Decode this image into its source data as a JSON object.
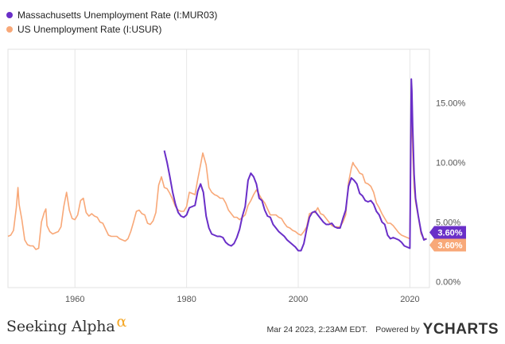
{
  "legend": {
    "items": [
      {
        "label": "Massachusetts Unemployment Rate (I:MUR03)",
        "color": "#6a2fc8"
      },
      {
        "label": "US Unemployment Rate (I:USUR)",
        "color": "#f8a878"
      }
    ]
  },
  "footer": {
    "brand": "Seeking Alpha",
    "brand_symbol": "α",
    "timestamp": "Mar 24 2023, 2:23AM EDT.",
    "powered_by": "Powered by",
    "ycharts": "YCHARTS"
  },
  "chart_data": {
    "type": "line",
    "x_ticks": [
      1960,
      1980,
      2000,
      2020
    ],
    "y_ticks": [
      0,
      5,
      10,
      15
    ],
    "y_tick_labels": [
      "0.00%",
      "5.00%",
      "10.00%",
      "15.00%"
    ],
    "xlim": [
      1948,
      2023.5
    ],
    "ylim": [
      -0.5,
      19.5
    ],
    "grid": "vertical",
    "legend_position": "top-left",
    "end_labels": [
      {
        "series": "Massachusetts Unemployment Rate (I:MUR03)",
        "text": "3.60%",
        "value": 3.6
      },
      {
        "series": "US Unemployment Rate (I:USUR)",
        "text": "3.60%",
        "value": 3.6
      }
    ],
    "series": [
      {
        "name": "Massachusetts Unemployment Rate (I:MUR03)",
        "color": "#6a2fc8",
        "x": [
          1976.0,
          1976.5,
          1977.0,
          1977.5,
          1978.0,
          1978.5,
          1979.0,
          1979.5,
          1980.0,
          1980.5,
          1981.0,
          1981.5,
          1982.0,
          1982.5,
          1983.0,
          1983.5,
          1984.0,
          1984.5,
          1985.0,
          1985.5,
          1986.0,
          1986.5,
          1987.0,
          1987.5,
          1988.0,
          1988.5,
          1989.0,
          1989.5,
          1990.0,
          1990.5,
          1991.0,
          1991.5,
          1992.0,
          1992.5,
          1993.0,
          1993.5,
          1994.0,
          1994.5,
          1995.0,
          1995.5,
          1996.0,
          1996.5,
          1997.0,
          1997.5,
          1998.0,
          1998.5,
          1999.0,
          1999.5,
          2000.0,
          2000.5,
          2001.0,
          2001.5,
          2002.0,
          2002.5,
          2003.0,
          2003.5,
          2004.0,
          2004.5,
          2005.0,
          2005.5,
          2006.0,
          2006.5,
          2007.0,
          2007.5,
          2008.0,
          2008.5,
          2009.0,
          2009.5,
          2010.0,
          2010.5,
          2011.0,
          2011.5,
          2012.0,
          2012.5,
          2013.0,
          2013.5,
          2014.0,
          2014.5,
          2015.0,
          2015.5,
          2016.0,
          2016.5,
          2017.0,
          2017.5,
          2018.0,
          2018.5,
          2019.0,
          2019.5,
          2020.0,
          2020.25,
          2020.35,
          2020.5,
          2020.75,
          2021.0,
          2021.5,
          2022.0,
          2022.5,
          2023.0
        ],
        "values": [
          11.0,
          10.0,
          8.8,
          7.5,
          6.5,
          5.8,
          5.5,
          5.4,
          5.6,
          6.2,
          6.3,
          6.4,
          7.6,
          8.2,
          7.5,
          5.5,
          4.5,
          4.0,
          3.9,
          3.8,
          3.8,
          3.7,
          3.3,
          3.1,
          3.0,
          3.2,
          3.7,
          4.4,
          5.5,
          6.3,
          8.5,
          9.1,
          8.8,
          8.2,
          7.0,
          6.8,
          6.0,
          5.5,
          5.4,
          4.8,
          4.5,
          4.2,
          4.0,
          3.8,
          3.5,
          3.3,
          3.1,
          2.9,
          2.6,
          2.6,
          3.2,
          4.4,
          5.4,
          5.8,
          5.9,
          5.6,
          5.3,
          5.0,
          4.8,
          4.8,
          4.9,
          4.6,
          4.5,
          4.5,
          5.3,
          6.0,
          8.0,
          8.7,
          8.5,
          8.2,
          7.4,
          7.2,
          6.8,
          6.7,
          6.8,
          6.5,
          5.9,
          5.6,
          5.0,
          4.8,
          3.9,
          3.6,
          3.7,
          3.6,
          3.5,
          3.3,
          3.0,
          2.9,
          2.8,
          17.0,
          16.0,
          13.0,
          9.0,
          7.0,
          5.5,
          4.2,
          3.5,
          3.6
        ]
      },
      {
        "name": "US Unemployment Rate (I:USUR)",
        "color": "#f8a878",
        "x": [
          1948.0,
          1948.5,
          1949.0,
          1949.5,
          1949.8,
          1950.0,
          1950.5,
          1951.0,
          1951.5,
          1952.0,
          1952.5,
          1953.0,
          1953.5,
          1954.0,
          1954.5,
          1954.8,
          1955.0,
          1955.5,
          1956.0,
          1956.5,
          1957.0,
          1957.5,
          1958.0,
          1958.5,
          1959.0,
          1959.5,
          1960.0,
          1960.5,
          1961.0,
          1961.5,
          1962.0,
          1962.5,
          1963.0,
          1963.5,
          1964.0,
          1964.5,
          1965.0,
          1965.5,
          1966.0,
          1966.5,
          1967.0,
          1967.5,
          1968.0,
          1968.5,
          1969.0,
          1969.5,
          1970.0,
          1970.5,
          1971.0,
          1971.5,
          1972.0,
          1972.5,
          1973.0,
          1973.5,
          1974.0,
          1974.5,
          1975.0,
          1975.5,
          1976.0,
          1976.5,
          1977.0,
          1977.5,
          1978.0,
          1978.5,
          1979.0,
          1979.5,
          1980.0,
          1980.5,
          1981.0,
          1981.5,
          1982.0,
          1982.5,
          1982.9,
          1983.5,
          1984.0,
          1984.5,
          1985.0,
          1985.5,
          1986.0,
          1986.5,
          1987.0,
          1987.5,
          1988.0,
          1988.5,
          1989.0,
          1989.5,
          1990.0,
          1990.5,
          1991.0,
          1991.5,
          1992.0,
          1992.5,
          1993.0,
          1993.5,
          1994.0,
          1994.5,
          1995.0,
          1995.5,
          1996.0,
          1996.5,
          1997.0,
          1997.5,
          1998.0,
          1998.5,
          1999.0,
          1999.5,
          2000.0,
          2000.5,
          2001.0,
          2001.5,
          2002.0,
          2002.5,
          2003.0,
          2003.5,
          2004.0,
          2004.5,
          2005.0,
          2005.5,
          2006.0,
          2006.5,
          2007.0,
          2007.5,
          2008.0,
          2008.5,
          2009.0,
          2009.5,
          2009.8,
          2010.0,
          2010.5,
          2011.0,
          2011.5,
          2012.0,
          2012.5,
          2013.0,
          2013.5,
          2014.0,
          2014.5,
          2015.0,
          2015.5,
          2016.0,
          2016.5,
          2017.0,
          2017.5,
          2018.0,
          2018.5,
          2019.0,
          2019.5,
          2020.0,
          2020.25,
          2020.35,
          2020.5,
          2020.75,
          2021.0,
          2021.5,
          2022.0,
          2022.5,
          2023.0
        ],
        "values": [
          3.8,
          3.9,
          4.3,
          6.2,
          7.9,
          6.5,
          5.2,
          3.5,
          3.1,
          3.0,
          3.0,
          2.7,
          2.8,
          5.0,
          5.8,
          6.1,
          4.7,
          4.2,
          4.0,
          4.1,
          4.2,
          4.6,
          6.3,
          7.5,
          6.0,
          5.3,
          5.2,
          5.6,
          6.8,
          7.0,
          5.8,
          5.5,
          5.7,
          5.5,
          5.4,
          5.0,
          4.9,
          4.4,
          3.9,
          3.8,
          3.8,
          3.8,
          3.6,
          3.5,
          3.4,
          3.6,
          4.2,
          5.0,
          5.9,
          6.0,
          5.7,
          5.6,
          4.9,
          4.8,
          5.1,
          5.8,
          8.1,
          8.8,
          7.9,
          7.8,
          7.4,
          6.9,
          6.3,
          6.0,
          5.9,
          5.9,
          6.3,
          7.5,
          7.4,
          7.3,
          8.6,
          9.8,
          10.8,
          9.8,
          7.9,
          7.5,
          7.3,
          7.2,
          7.0,
          7.0,
          6.6,
          6.0,
          5.7,
          5.4,
          5.4,
          5.2,
          5.4,
          5.6,
          6.4,
          6.8,
          7.3,
          7.7,
          7.3,
          6.9,
          6.6,
          6.1,
          5.6,
          5.6,
          5.6,
          5.4,
          5.3,
          4.9,
          4.6,
          4.5,
          4.3,
          4.2,
          4.0,
          3.9,
          4.2,
          4.6,
          5.7,
          5.8,
          5.8,
          6.2,
          5.7,
          5.6,
          5.3,
          5.0,
          4.7,
          4.6,
          4.6,
          4.6,
          5.0,
          5.6,
          8.3,
          9.5,
          10.0,
          9.8,
          9.5,
          9.1,
          9.0,
          8.3,
          8.2,
          8.0,
          7.5,
          6.6,
          6.2,
          5.7,
          5.3,
          4.9,
          4.9,
          4.7,
          4.4,
          4.1,
          3.9,
          3.8,
          3.7,
          3.6,
          14.7,
          13.3,
          11.1,
          7.9,
          6.7,
          5.4,
          4.0,
          3.6,
          3.6
        ]
      }
    ]
  }
}
